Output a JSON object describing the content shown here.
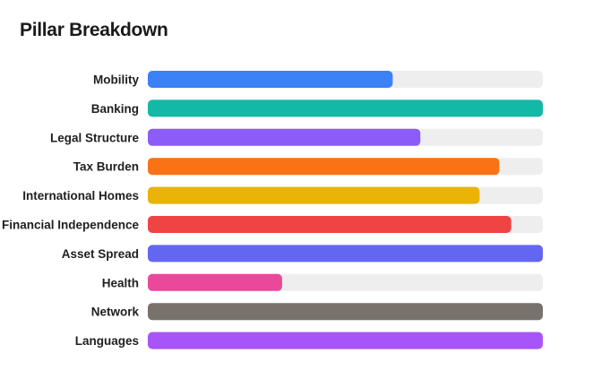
{
  "title": "Pillar Breakdown",
  "colors": {
    "track": "#eeeeee"
  },
  "chart_data": {
    "type": "bar",
    "orientation": "horizontal",
    "xlim": [
      0,
      100
    ],
    "grid": false,
    "categories": [
      "Mobility",
      "Banking",
      "Legal Structure",
      "Tax Burden",
      "International Homes",
      "Financial Independence",
      "Asset Spread",
      "Health",
      "Network",
      "Languages"
    ],
    "values": [
      62,
      100,
      69,
      89,
      84,
      92,
      100,
      34,
      100,
      100
    ],
    "colors": [
      "#3b82f6",
      "#14b8a6",
      "#8b5cf6",
      "#f97316",
      "#eab308",
      "#ef4444",
      "#6366f1",
      "#ec4899",
      "#78716c",
      "#a855f7"
    ]
  }
}
